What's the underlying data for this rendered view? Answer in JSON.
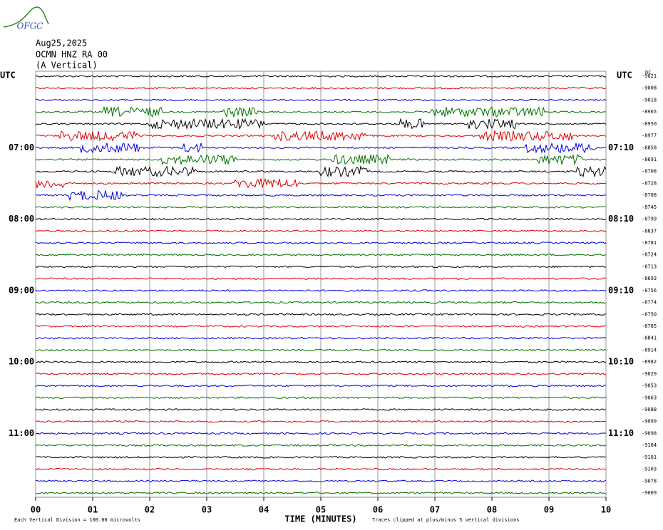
{
  "chart_data": {
    "type": "helicorder",
    "logo": "OFGC",
    "title_lines": [
      "Aug25,2025",
      "OCMN HNZ RA 00",
      "(A Vertical)"
    ],
    "left_axis_label": "UTC",
    "right_axis_label": "UTC",
    "dc_label": "DC",
    "trace_colors": [
      "#000000",
      "#e00000",
      "#0000e0",
      "#007000"
    ],
    "trace_offsets": [
      -9021,
      -9008,
      -9018,
      -8965,
      -8950,
      -8977,
      -8858,
      -8691,
      -8708,
      -8728,
      -8708,
      -8745,
      -8799,
      -8837,
      -8781,
      -8724,
      -8713,
      -8693,
      -8756,
      -8774,
      -8750,
      -8785,
      -8841,
      -8914,
      -8982,
      -9029,
      -9053,
      -9063,
      -9088,
      -9099,
      -9098,
      -9104,
      -9101,
      -9103,
      -9078,
      -9069
    ],
    "left_time_labels": [
      null,
      null,
      null,
      null,
      null,
      null,
      "07:00",
      null,
      null,
      null,
      null,
      null,
      "08:00",
      null,
      null,
      null,
      null,
      null,
      "09:00",
      null,
      null,
      null,
      null,
      null,
      "10:00",
      null,
      null,
      null,
      null,
      null,
      "11:00",
      null,
      null,
      null,
      null,
      null
    ],
    "right_time_labels": [
      null,
      null,
      null,
      null,
      null,
      null,
      "07:10",
      null,
      null,
      null,
      null,
      null,
      "08:10",
      null,
      null,
      null,
      null,
      null,
      "09:10",
      null,
      null,
      null,
      null,
      null,
      "10:10",
      null,
      null,
      null,
      null,
      null,
      "11:10",
      null,
      null,
      null,
      null,
      null
    ],
    "xlim": [
      0,
      10
    ],
    "xticks": [
      {
        "value": 0,
        "label": "00"
      },
      {
        "value": 1,
        "label": "01"
      },
      {
        "value": 2,
        "label": "02"
      },
      {
        "value": 3,
        "label": "03"
      },
      {
        "value": 4,
        "label": "04"
      },
      {
        "value": 5,
        "label": "05"
      },
      {
        "value": 6,
        "label": "06"
      },
      {
        "value": 7,
        "label": "07"
      },
      {
        "value": 8,
        "label": "08"
      },
      {
        "value": 9,
        "label": "09"
      },
      {
        "value": 10,
        "label": "10"
      }
    ],
    "xlabel": "TIME (MINUTES)",
    "footnote_left": "Each Vertical Division =  100.00 microvolts",
    "footnote_right": "Traces clipped at plus/minus 5 vertical divisions",
    "grid": true
  }
}
